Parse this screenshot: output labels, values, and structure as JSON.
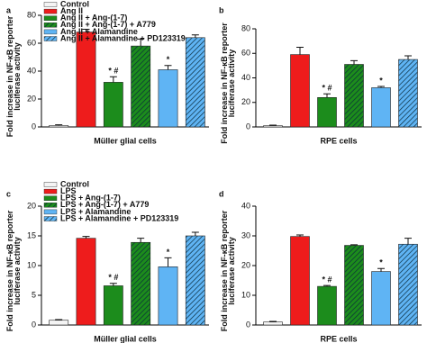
{
  "chart_data": [
    {
      "type": "bar",
      "panel_label": "a",
      "ylabel": [
        "Fold increase in NF-κB reporter",
        "luciferase activity"
      ],
      "xlabel": "Müller glial cells",
      "categories": [
        "Control",
        "Ang II",
        "Ang II + Ang-(1-7)",
        "Ang II + Ang-(1-7) + A779",
        "Ang II + Alamandine",
        "Ang II + Alamandine + PD123319"
      ],
      "values": [
        1,
        68,
        32,
        58,
        41,
        64
      ],
      "errors": [
        0.5,
        2,
        4,
        5,
        3,
        2
      ],
      "value_annotations": [
        null,
        null,
        "* #",
        null,
        "*",
        null
      ],
      "colors": [
        "#f4f4f4",
        "#ee1c1c",
        "#1c8c1c",
        "#1c8c1c",
        "#5fb4f4",
        "#5fb4f4"
      ],
      "hatch": [
        false,
        false,
        false,
        true,
        false,
        true
      ],
      "ylim": [
        0,
        80
      ],
      "yticks": [
        0,
        20,
        40,
        60,
        80
      ]
    },
    {
      "type": "bar",
      "panel_label": "b",
      "ylabel": [
        "Fold increase in NF-κB reporter",
        "luciferase activity"
      ],
      "xlabel": "RPE cells",
      "values": [
        1,
        59,
        24,
        51,
        32,
        55
      ],
      "errors": [
        0.5,
        6,
        3,
        3,
        1,
        3
      ],
      "value_annotations": [
        null,
        null,
        "* #",
        null,
        "*",
        null
      ],
      "colors": [
        "#f4f4f4",
        "#ee1c1c",
        "#1c8c1c",
        "#1c8c1c",
        "#5fb4f4",
        "#5fb4f4"
      ],
      "hatch": [
        false,
        false,
        false,
        true,
        false,
        true
      ],
      "ylim": [
        0,
        80
      ],
      "yticks": [
        0,
        20,
        40,
        60,
        80
      ]
    },
    {
      "type": "bar",
      "panel_label": "c",
      "ylabel": [
        "Fold increase in NF-κB reporter",
        "luciferase activity"
      ],
      "xlabel": "Müller glial cells",
      "categories": [
        "Control",
        "LPS",
        "LPS + Ang-(1-7)",
        "LPS + Ang-(1-7) + A779",
        "LPS + Alamandine",
        "LPS + Alamandine + PD123319"
      ],
      "values": [
        0.8,
        14.6,
        6.6,
        13.9,
        9.8,
        15.0
      ],
      "errors": [
        0.1,
        0.3,
        0.4,
        0.7,
        1.5,
        0.6
      ],
      "value_annotations": [
        null,
        null,
        "* #",
        null,
        "*",
        null
      ],
      "colors": [
        "#f4f4f4",
        "#ee1c1c",
        "#1c8c1c",
        "#1c8c1c",
        "#5fb4f4",
        "#5fb4f4"
      ],
      "hatch": [
        false,
        false,
        false,
        true,
        false,
        true
      ],
      "ylim": [
        0,
        20
      ],
      "yticks": [
        0,
        5,
        10,
        15,
        20
      ]
    },
    {
      "type": "bar",
      "panel_label": "d",
      "ylabel": [
        "Fold increase in NF-κB reporter",
        "luciferase activity"
      ],
      "xlabel": "RPE cells",
      "values": [
        1,
        29.8,
        13,
        26.8,
        18,
        27.2
      ],
      "errors": [
        0.2,
        0.5,
        0.3,
        0.2,
        1,
        2
      ],
      "value_annotations": [
        null,
        null,
        "* #",
        null,
        "*",
        null
      ],
      "colors": [
        "#f4f4f4",
        "#ee1c1c",
        "#1c8c1c",
        "#1c8c1c",
        "#5fb4f4",
        "#5fb4f4"
      ],
      "hatch": [
        false,
        false,
        false,
        true,
        false,
        true
      ],
      "ylim": [
        0,
        40
      ],
      "yticks": [
        0,
        10,
        20,
        30,
        40
      ]
    }
  ]
}
